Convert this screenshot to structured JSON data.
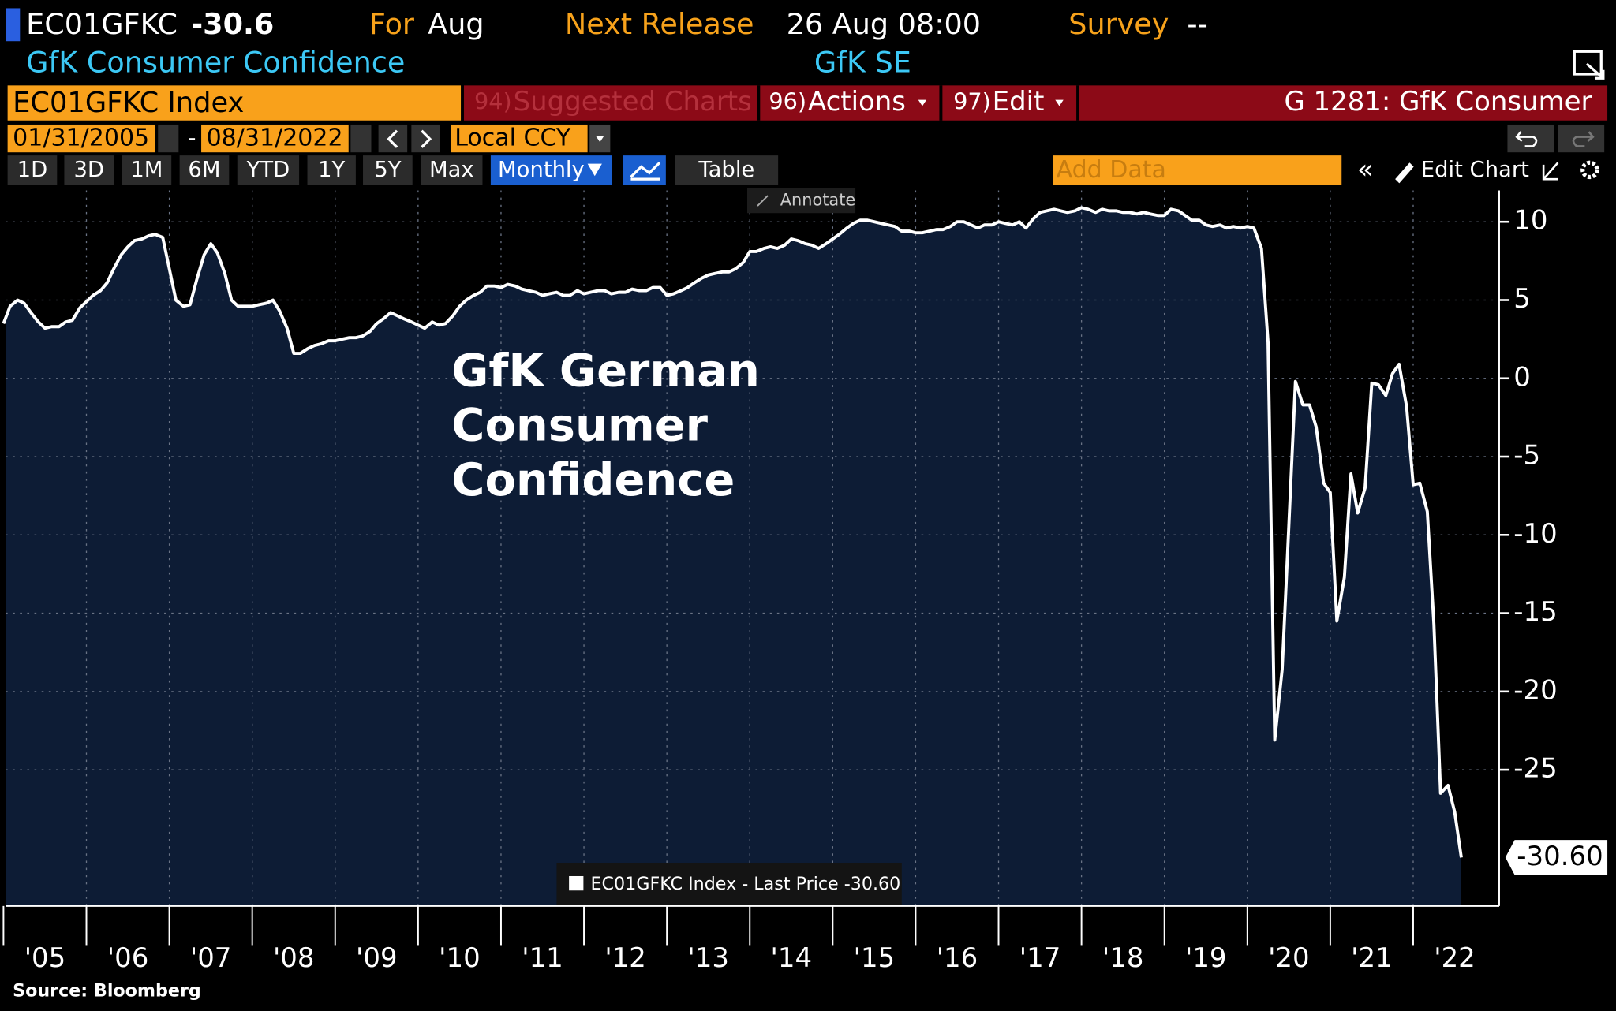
{
  "ui": {
    "ticker": "EC01GFKC",
    "last": "-30.6",
    "for_label": "For",
    "for_value": "Aug",
    "next_label": "Next Release",
    "next_value": "26 Aug 08:00",
    "survey_label": "Survey",
    "survey_value": "--",
    "name": "GfK Consumer Confidence",
    "source_org": "GfK SE",
    "security": "EC01GFKC Index",
    "menu": [
      {
        "key": "94)",
        "label": "Suggested Charts"
      },
      {
        "key": "96)",
        "label": "Actions"
      },
      {
        "key": "97)",
        "label": "Edit"
      }
    ],
    "chart_id": "G 1281: GfK Consumer",
    "start_date": "01/31/2005",
    "end_date": "08/31/2022",
    "currency": "Local CCY",
    "periods": [
      "1D",
      "3D",
      "1M",
      "6M",
      "YTD",
      "1Y",
      "5Y",
      "Max"
    ],
    "frequency": "Monthly",
    "table": "Table",
    "add_data": "Add Data",
    "edit_chart": "Edit Chart",
    "annotate": "Annotate"
  },
  "chart_data": {
    "type": "line",
    "annotation": [
      "GfK German",
      "Consumer",
      "Confidence"
    ],
    "source": "Source: Bloomberg",
    "last_price_label": "-30.60",
    "xlim": [
      2005,
      2023
    ],
    "xticks": [
      {
        "value": 2005,
        "label": "'05"
      },
      {
        "value": 2006,
        "label": "'06"
      },
      {
        "value": 2007,
        "label": "'07"
      },
      {
        "value": 2008,
        "label": "'08"
      },
      {
        "value": 2009,
        "label": "'09"
      },
      {
        "value": 2010,
        "label": "'10"
      },
      {
        "value": 2011,
        "label": "'11"
      },
      {
        "value": 2012,
        "label": "'12"
      },
      {
        "value": 2013,
        "label": "'13"
      },
      {
        "value": 2014,
        "label": "'14"
      },
      {
        "value": 2015,
        "label": "'15"
      },
      {
        "value": 2016,
        "label": "'16"
      },
      {
        "value": 2017,
        "label": "'17"
      },
      {
        "value": 2018,
        "label": "'18"
      },
      {
        "value": 2019,
        "label": "'19"
      },
      {
        "value": 2020,
        "label": "'20"
      },
      {
        "value": 2021,
        "label": "'21"
      },
      {
        "value": 2022,
        "label": "'22"
      }
    ],
    "ylim": [
      -33.7,
      12
    ],
    "yticks": [
      10,
      5,
      0,
      -5,
      -10,
      -15,
      -20,
      -25
    ],
    "grid": true,
    "x": [
      2005,
      2005.08,
      2005.17,
      2005.25,
      2005.33,
      2005.42,
      2005.5,
      2005.58,
      2005.67,
      2005.75,
      2005.83,
      2005.92,
      2006,
      2006.08,
      2006.17,
      2006.25,
      2006.33,
      2006.42,
      2006.5,
      2006.58,
      2006.67,
      2006.75,
      2006.83,
      2006.92,
      2007,
      2007.08,
      2007.17,
      2007.25,
      2007.33,
      2007.42,
      2007.5,
      2007.58,
      2007.67,
      2007.75,
      2007.83,
      2007.92,
      2008,
      2008.08,
      2008.17,
      2008.25,
      2008.33,
      2008.42,
      2008.5,
      2008.58,
      2008.67,
      2008.75,
      2008.83,
      2008.92,
      2009,
      2009.08,
      2009.17,
      2009.25,
      2009.33,
      2009.42,
      2009.5,
      2009.58,
      2009.67,
      2009.75,
      2009.83,
      2009.92,
      2010,
      2010.08,
      2010.17,
      2010.25,
      2010.33,
      2010.42,
      2010.5,
      2010.58,
      2010.67,
      2010.75,
      2010.83,
      2010.92,
      2011,
      2011.08,
      2011.17,
      2011.25,
      2011.33,
      2011.42,
      2011.5,
      2011.58,
      2011.67,
      2011.75,
      2011.83,
      2011.92,
      2012,
      2012.08,
      2012.17,
      2012.25,
      2012.33,
      2012.42,
      2012.5,
      2012.58,
      2012.67,
      2012.75,
      2012.83,
      2012.92,
      2013,
      2013.08,
      2013.17,
      2013.25,
      2013.33,
      2013.42,
      2013.5,
      2013.58,
      2013.67,
      2013.75,
      2013.83,
      2013.92,
      2014,
      2014.08,
      2014.17,
      2014.25,
      2014.33,
      2014.42,
      2014.5,
      2014.58,
      2014.67,
      2014.75,
      2014.83,
      2014.92,
      2015,
      2015.08,
      2015.17,
      2015.25,
      2015.33,
      2015.42,
      2015.5,
      2015.58,
      2015.67,
      2015.75,
      2015.83,
      2015.92,
      2016,
      2016.08,
      2016.17,
      2016.25,
      2016.33,
      2016.42,
      2016.5,
      2016.58,
      2016.67,
      2016.75,
      2016.83,
      2016.92,
      2017,
      2017.08,
      2017.17,
      2017.25,
      2017.33,
      2017.42,
      2017.5,
      2017.58,
      2017.67,
      2017.75,
      2017.83,
      2017.92,
      2018,
      2018.08,
      2018.17,
      2018.25,
      2018.33,
      2018.42,
      2018.5,
      2018.58,
      2018.67,
      2018.75,
      2018.83,
      2018.92,
      2019,
      2019.08,
      2019.17,
      2019.25,
      2019.33,
      2019.42,
      2019.5,
      2019.58,
      2019.67,
      2019.75,
      2019.83,
      2019.92,
      2020,
      2020.08,
      2020.17,
      2020.25,
      2020.33,
      2020.42,
      2020.5,
      2020.58,
      2020.67,
      2020.75,
      2020.83,
      2020.92,
      2021,
      2021.08,
      2021.17,
      2021.25,
      2021.33,
      2021.42,
      2021.5,
      2021.58,
      2021.67,
      2021.75,
      2021.83,
      2021.92,
      2022,
      2022.08,
      2022.17,
      2022.25,
      2022.33,
      2022.42,
      2022.5,
      2022.58
    ],
    "series": [
      {
        "name": "EC01GFKC Index - Last Price -30.60",
        "color": "#ffffff",
        "fill": "#0d1c35",
        "values": [
          3.5,
          4.6,
          5.0,
          4.8,
          4.2,
          3.6,
          3.2,
          3.3,
          3.3,
          3.6,
          3.7,
          4.5,
          4.9,
          5.3,
          5.6,
          6.1,
          7.0,
          7.9,
          8.4,
          8.8,
          8.9,
          9.1,
          9.2,
          9.0,
          7.0,
          5.0,
          4.6,
          4.7,
          6.3,
          7.9,
          8.6,
          8.0,
          6.7,
          5.0,
          4.6,
          4.6,
          4.6,
          4.7,
          4.8,
          5.0,
          4.3,
          3.2,
          1.6,
          1.6,
          1.9,
          2.1,
          2.2,
          2.4,
          2.4,
          2.5,
          2.6,
          2.6,
          2.7,
          3.0,
          3.5,
          3.8,
          4.2,
          4.0,
          3.8,
          3.6,
          3.4,
          3.2,
          3.6,
          3.4,
          3.5,
          4.0,
          4.6,
          5.0,
          5.3,
          5.5,
          5.9,
          5.9,
          5.8,
          6.0,
          5.9,
          5.7,
          5.6,
          5.5,
          5.3,
          5.4,
          5.5,
          5.3,
          5.3,
          5.6,
          5.4,
          5.5,
          5.6,
          5.6,
          5.4,
          5.5,
          5.5,
          5.7,
          5.6,
          5.6,
          5.8,
          5.8,
          5.3,
          5.4,
          5.6,
          5.8,
          6.1,
          6.4,
          6.6,
          6.7,
          6.8,
          6.8,
          7.0,
          7.4,
          8.1,
          8.1,
          8.3,
          8.4,
          8.3,
          8.5,
          8.9,
          8.8,
          8.6,
          8.5,
          8.3,
          8.6,
          8.9,
          9.2,
          9.6,
          9.9,
          10.1,
          10.1,
          10.0,
          9.9,
          9.8,
          9.7,
          9.4,
          9.4,
          9.3,
          9.3,
          9.4,
          9.5,
          9.5,
          9.7,
          10.0,
          10.0,
          9.8,
          9.6,
          9.8,
          9.8,
          10.0,
          9.9,
          9.8,
          10.0,
          9.6,
          10.2,
          10.6,
          10.7,
          10.8,
          10.7,
          10.6,
          10.7,
          10.9,
          10.8,
          10.6,
          10.8,
          10.7,
          10.7,
          10.6,
          10.6,
          10.5,
          10.6,
          10.5,
          10.4,
          10.4,
          10.8,
          10.7,
          10.4,
          10.1,
          10.1,
          9.8,
          9.7,
          9.8,
          9.6,
          9.7,
          9.6,
          9.7,
          9.6,
          8.3,
          2.3,
          -23.1,
          -18.6,
          -9.4,
          -0.2,
          -1.7,
          -1.7,
          -3.1,
          -6.7,
          -7.3,
          -15.5,
          -12.7,
          -6.1,
          -8.6,
          -7.0,
          -0.3,
          -0.4,
          -1.1,
          0.3,
          0.9,
          -1.8,
          -6.8,
          -6.7,
          -8.5,
          -15.7,
          -26.5,
          -26.0,
          -27.7,
          -30.6
        ]
      }
    ]
  }
}
